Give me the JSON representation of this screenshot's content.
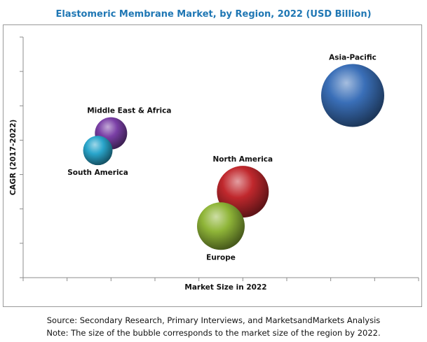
{
  "chart_data": {
    "type": "bubble",
    "title": "Elastomeric Membrane Market, by Region, 2022 (USD Billion)",
    "xlabel": "Market Size in 2022",
    "ylabel": "CAGR (2017-2022)",
    "grid": false,
    "points": [
      {
        "name": "Asia-Pacific",
        "x": 7.5,
        "y": 5.3,
        "size": 45,
        "color": "#3a6fb8"
      },
      {
        "name": "North America",
        "x": 5.0,
        "y": 2.5,
        "size": 37,
        "color": "#c0282d"
      },
      {
        "name": "Europe",
        "x": 4.5,
        "y": 1.5,
        "size": 34,
        "color": "#8fb538"
      },
      {
        "name": "Middle East & Africa",
        "x": 2.0,
        "y": 4.2,
        "size": 23,
        "color": "#7a3fa6"
      },
      {
        "name": "South America",
        "x": 1.7,
        "y": 3.7,
        "size": 21,
        "color": "#2aa6cc"
      }
    ]
  },
  "footer": {
    "source": "Source: Secondary Research, Primary Interviews, and MarketsandMarkets Analysis",
    "note": "Note: The size of the bubble corresponds to the market size of the region by 2022."
  }
}
